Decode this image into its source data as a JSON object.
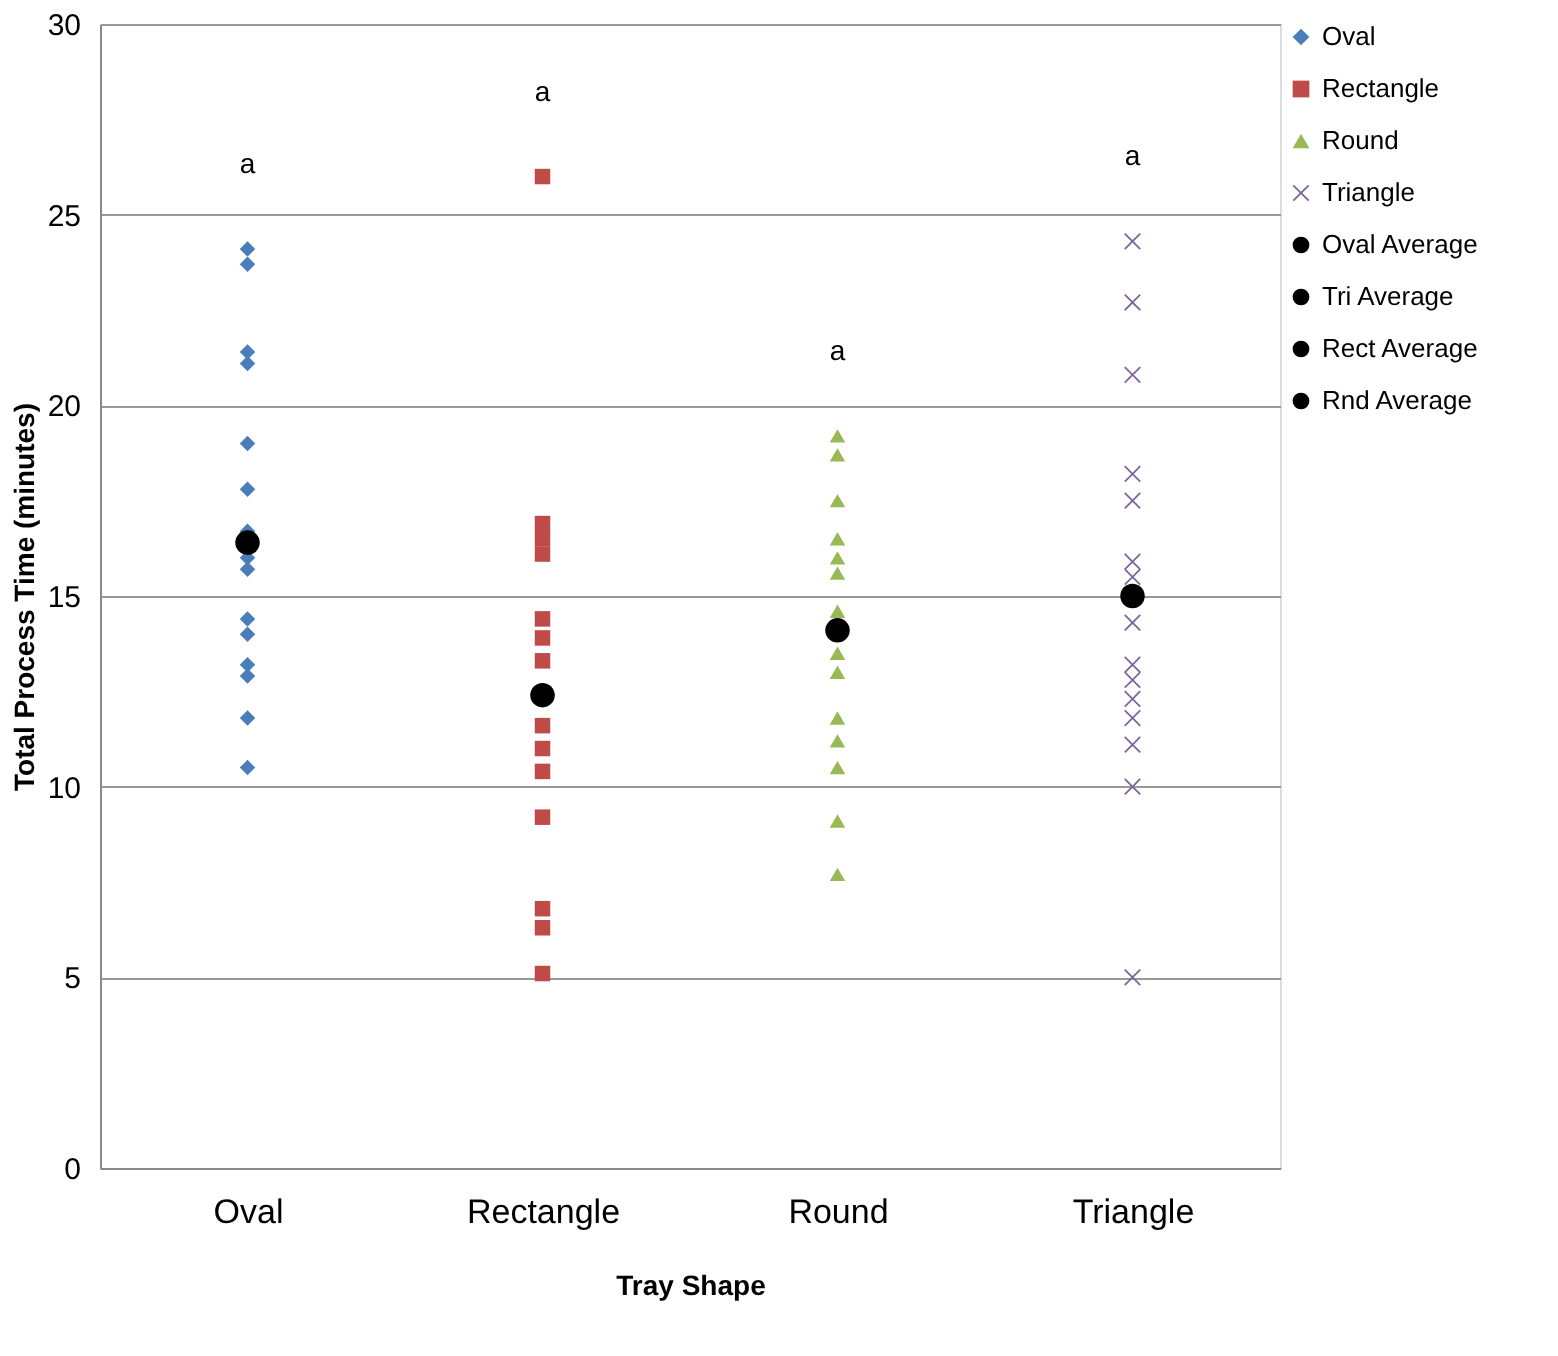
{
  "chart_data": {
    "type": "scatter",
    "xlabel": "Tray Shape",
    "ylabel": "Total Process Time (minutes)",
    "categories": [
      "Oval",
      "Rectangle",
      "Round",
      "Triangle"
    ],
    "ylim": [
      0,
      30
    ],
    "yticks": [
      0,
      5,
      10,
      15,
      20,
      25,
      30
    ],
    "grid": "y",
    "legend": "right",
    "series": [
      {
        "name": "Oval",
        "color": "#4a7ebb",
        "marker": "diamond",
        "x": [
          "Oval",
          "Oval",
          "Oval",
          "Oval",
          "Oval",
          "Oval",
          "Oval",
          "Oval",
          "Oval",
          "Oval",
          "Oval",
          "Oval",
          "Oval",
          "Oval",
          "Oval"
        ],
        "values": [
          24.1,
          23.7,
          21.4,
          21.1,
          19.0,
          17.8,
          16.7,
          16.0,
          15.7,
          14.4,
          14.0,
          13.2,
          12.9,
          11.8,
          10.5
        ]
      },
      {
        "name": "Rectangle",
        "color": "#be4b48",
        "marker": "square",
        "x": [
          "Rectangle",
          "Rectangle",
          "Rectangle",
          "Rectangle",
          "Rectangle",
          "Rectangle",
          "Rectangle",
          "Rectangle",
          "Rectangle",
          "Rectangle",
          "Rectangle",
          "Rectangle",
          "Rectangle",
          "Rectangle",
          "Rectangle"
        ],
        "values": [
          26.0,
          16.9,
          16.5,
          16.1,
          14.4,
          13.9,
          13.3,
          null,
          11.6,
          11.0,
          10.4,
          9.2,
          6.8,
          6.3,
          5.1
        ]
      },
      {
        "name": "Round",
        "color": "#98b954",
        "marker": "triangle",
        "x": [
          "Round",
          "Round",
          "Round",
          "Round",
          "Round",
          "Round",
          "Round",
          "Round",
          "Round",
          "Round",
          "Round",
          "Round",
          "Round",
          "Round"
        ],
        "values": [
          19.2,
          18.7,
          17.5,
          16.5,
          16.0,
          15.6,
          14.6,
          13.5,
          13.0,
          11.8,
          11.2,
          10.5,
          9.1,
          7.7
        ]
      },
      {
        "name": "Triangle",
        "color": "#7e649e",
        "marker": "cross",
        "x": [
          "Triangle",
          "Triangle",
          "Triangle",
          "Triangle",
          "Triangle",
          "Triangle",
          "Triangle",
          "Triangle",
          "Triangle",
          "Triangle",
          "Triangle",
          "Triangle",
          "Triangle",
          "Triangle",
          "Triangle"
        ],
        "values": [
          24.3,
          22.7,
          20.8,
          18.2,
          17.5,
          15.9,
          15.5,
          14.3,
          13.2,
          12.8,
          12.3,
          11.8,
          11.1,
          10.0,
          5.0
        ]
      },
      {
        "name": "Oval Average",
        "color": "#000000",
        "marker": "circle",
        "x": [
          "Oval"
        ],
        "values": [
          16.4
        ]
      },
      {
        "name": "Tri Average",
        "color": "#000000",
        "marker": "circle",
        "x": [
          "Triangle"
        ],
        "values": [
          15.0
        ]
      },
      {
        "name": "Rect Average",
        "color": "#000000",
        "marker": "circle",
        "x": [
          "Rectangle"
        ],
        "values": [
          12.4
        ]
      },
      {
        "name": "Rnd Average",
        "color": "#000000",
        "marker": "circle",
        "x": [
          "Round"
        ],
        "values": [
          14.1
        ]
      }
    ],
    "annotations": [
      "a",
      "a",
      "a",
      "a"
    ]
  }
}
